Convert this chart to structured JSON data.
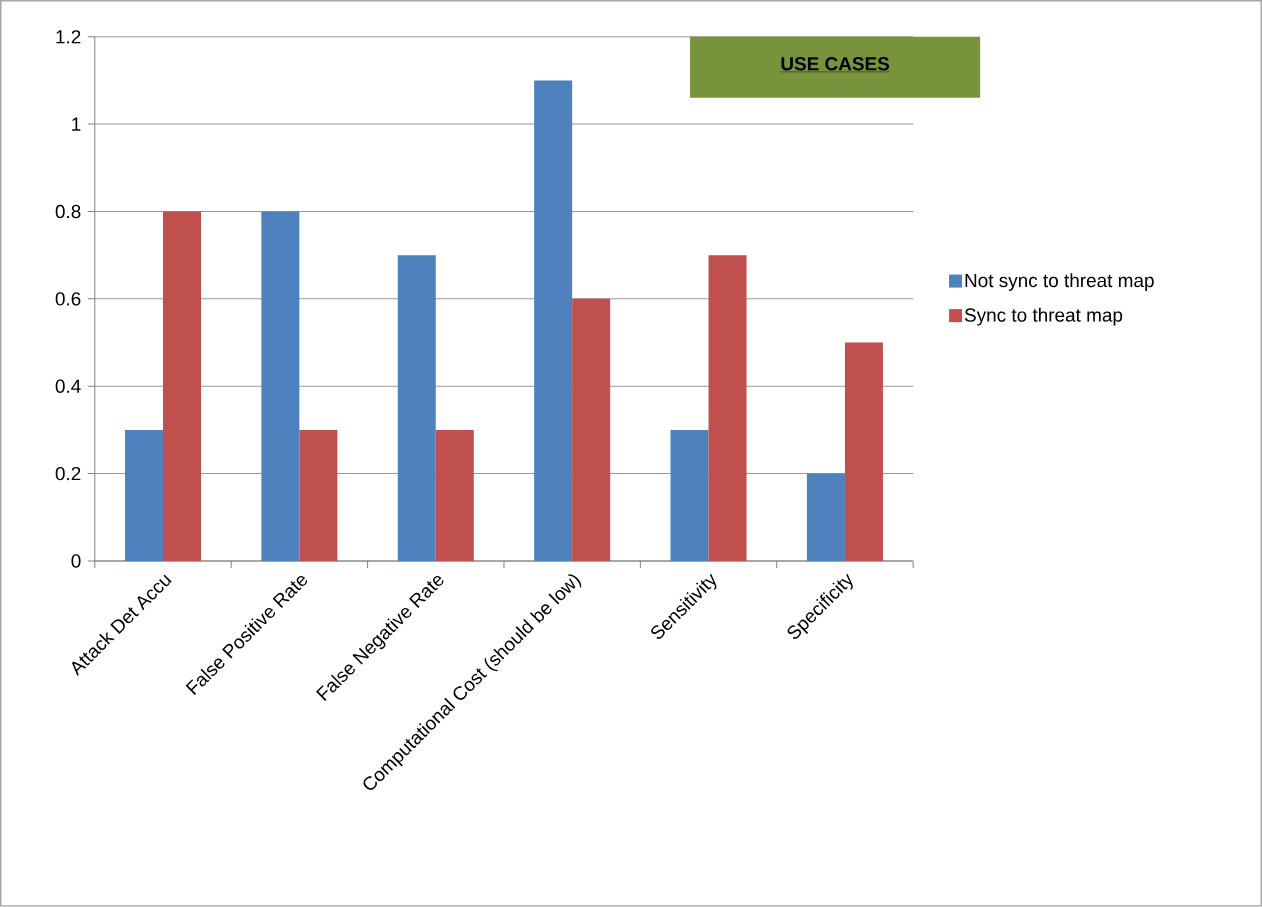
{
  "chart_data": {
    "type": "bar",
    "title": "USE CASES",
    "categories": [
      "Attack Det Accu",
      "False Positive Rate",
      "False Negative Rate",
      "Computational Cost (should be low)",
      "Sensitivity",
      "Specificity"
    ],
    "series": [
      {
        "name": "Not sync to threat map",
        "color": "#4f81bd",
        "values": [
          0.3,
          0.8,
          0.7,
          1.1,
          0.3,
          0.2
        ]
      },
      {
        "name": "Sync to threat map",
        "color": "#c0504d",
        "values": [
          0.8,
          0.3,
          0.3,
          0.6,
          0.7,
          0.5
        ]
      }
    ],
    "ylim": [
      0,
      1.2
    ],
    "yticks": [
      0,
      0.2,
      0.4,
      0.6,
      0.8,
      1,
      1.2
    ],
    "grid": "y",
    "legend": "right"
  }
}
